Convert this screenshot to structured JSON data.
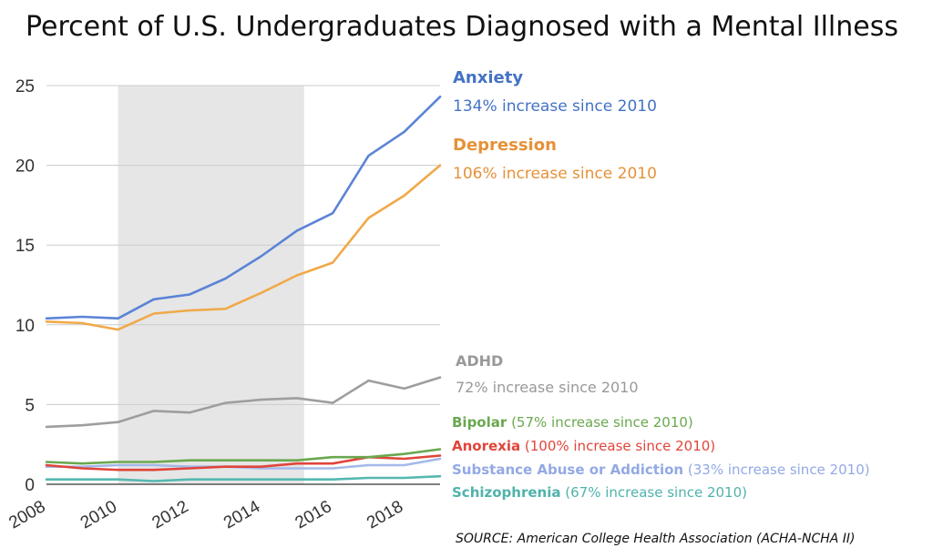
{
  "chart_data": {
    "type": "line",
    "title": "Percent of U.S. Undergraduates Diagnosed with a Mental Illness",
    "xlabel": "",
    "ylabel": "",
    "xlim": [
      2008,
      2019
    ],
    "ylim": [
      0,
      25
    ],
    "yticks": [
      0,
      5,
      10,
      15,
      20,
      25
    ],
    "xticks": [
      2008,
      2010,
      2012,
      2014,
      2016,
      2018
    ],
    "shaded_range": [
      2010,
      2015.2
    ],
    "x": [
      2008,
      2009,
      2010,
      2011,
      2012,
      2013,
      2014,
      2015,
      2016,
      2017,
      2018,
      2019
    ],
    "series": [
      {
        "name": "Anxiety",
        "color": "#5b84d6",
        "annotation": "134% increase since 2010",
        "values": [
          10.4,
          10.5,
          10.4,
          11.6,
          11.9,
          12.9,
          14.3,
          15.9,
          17.0,
          20.6,
          22.1,
          24.3
        ]
      },
      {
        "name": "Depression",
        "color": "#f0a94a",
        "annotation": "106% increase since 2010",
        "values": [
          10.2,
          10.1,
          9.7,
          10.7,
          10.9,
          11.0,
          12.0,
          13.1,
          13.9,
          16.7,
          18.1,
          20.0
        ]
      },
      {
        "name": "ADHD",
        "color": "#9e9e9e",
        "annotation": "72% increase since 2010",
        "values": [
          3.6,
          3.7,
          3.9,
          4.6,
          4.5,
          5.1,
          5.3,
          5.4,
          5.1,
          6.5,
          6.0,
          6.7
        ]
      },
      {
        "name": "Bipolar",
        "color": "#6aa84f",
        "annotation": "(57% increase since 2010)",
        "values": [
          1.4,
          1.3,
          1.4,
          1.4,
          1.5,
          1.5,
          1.5,
          1.5,
          1.7,
          1.7,
          1.9,
          2.2
        ]
      },
      {
        "name": "Anorexia",
        "color": "#e0453a",
        "annotation": "(100% increase since 2010)",
        "values": [
          1.2,
          1.0,
          0.9,
          0.9,
          1.0,
          1.1,
          1.1,
          1.3,
          1.3,
          1.7,
          1.6,
          1.8
        ]
      },
      {
        "name": "Substance Abuse or Addiction",
        "color": "#a4b8ea",
        "annotation": "(33% increase since 2010)",
        "values": [
          1.1,
          1.1,
          1.2,
          1.2,
          1.1,
          1.1,
          1.0,
          1.0,
          1.0,
          1.2,
          1.2,
          1.6
        ]
      },
      {
        "name": "Schizophrenia",
        "color": "#55b8b0",
        "annotation": "(67% increase since 2010)",
        "values": [
          0.3,
          0.3,
          0.3,
          0.2,
          0.3,
          0.3,
          0.3,
          0.3,
          0.3,
          0.4,
          0.4,
          0.5
        ]
      }
    ],
    "source": "SOURCE: American College Health Association (ACHA-NCHA II)"
  }
}
